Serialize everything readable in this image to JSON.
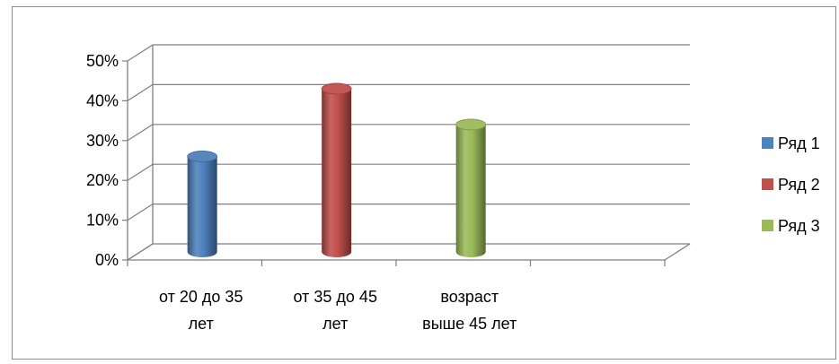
{
  "chart_data": {
    "type": "bar",
    "style": "3d-cylinder",
    "title": "",
    "categories": [
      [
        "от 20 до 35",
        "лет"
      ],
      [
        "от 35 до 45",
        "лет"
      ],
      [
        "возраст",
        "выше 45 лет"
      ]
    ],
    "series": [
      {
        "name": "Ряд 1",
        "color": "#4f81bd",
        "values": [
          0.24,
          null,
          null
        ]
      },
      {
        "name": "Ряд 2",
        "color": "#c0504d",
        "values": [
          null,
          0.41,
          null
        ]
      },
      {
        "name": "Ряд 3",
        "color": "#9bbb59",
        "values": [
          null,
          null,
          0.32
        ]
      }
    ],
    "y_ticks": [
      "0%",
      "10%",
      "20%",
      "30%",
      "40%",
      "50%"
    ],
    "ylim": [
      0,
      0.5
    ],
    "grid": true,
    "legend_position": "right"
  }
}
